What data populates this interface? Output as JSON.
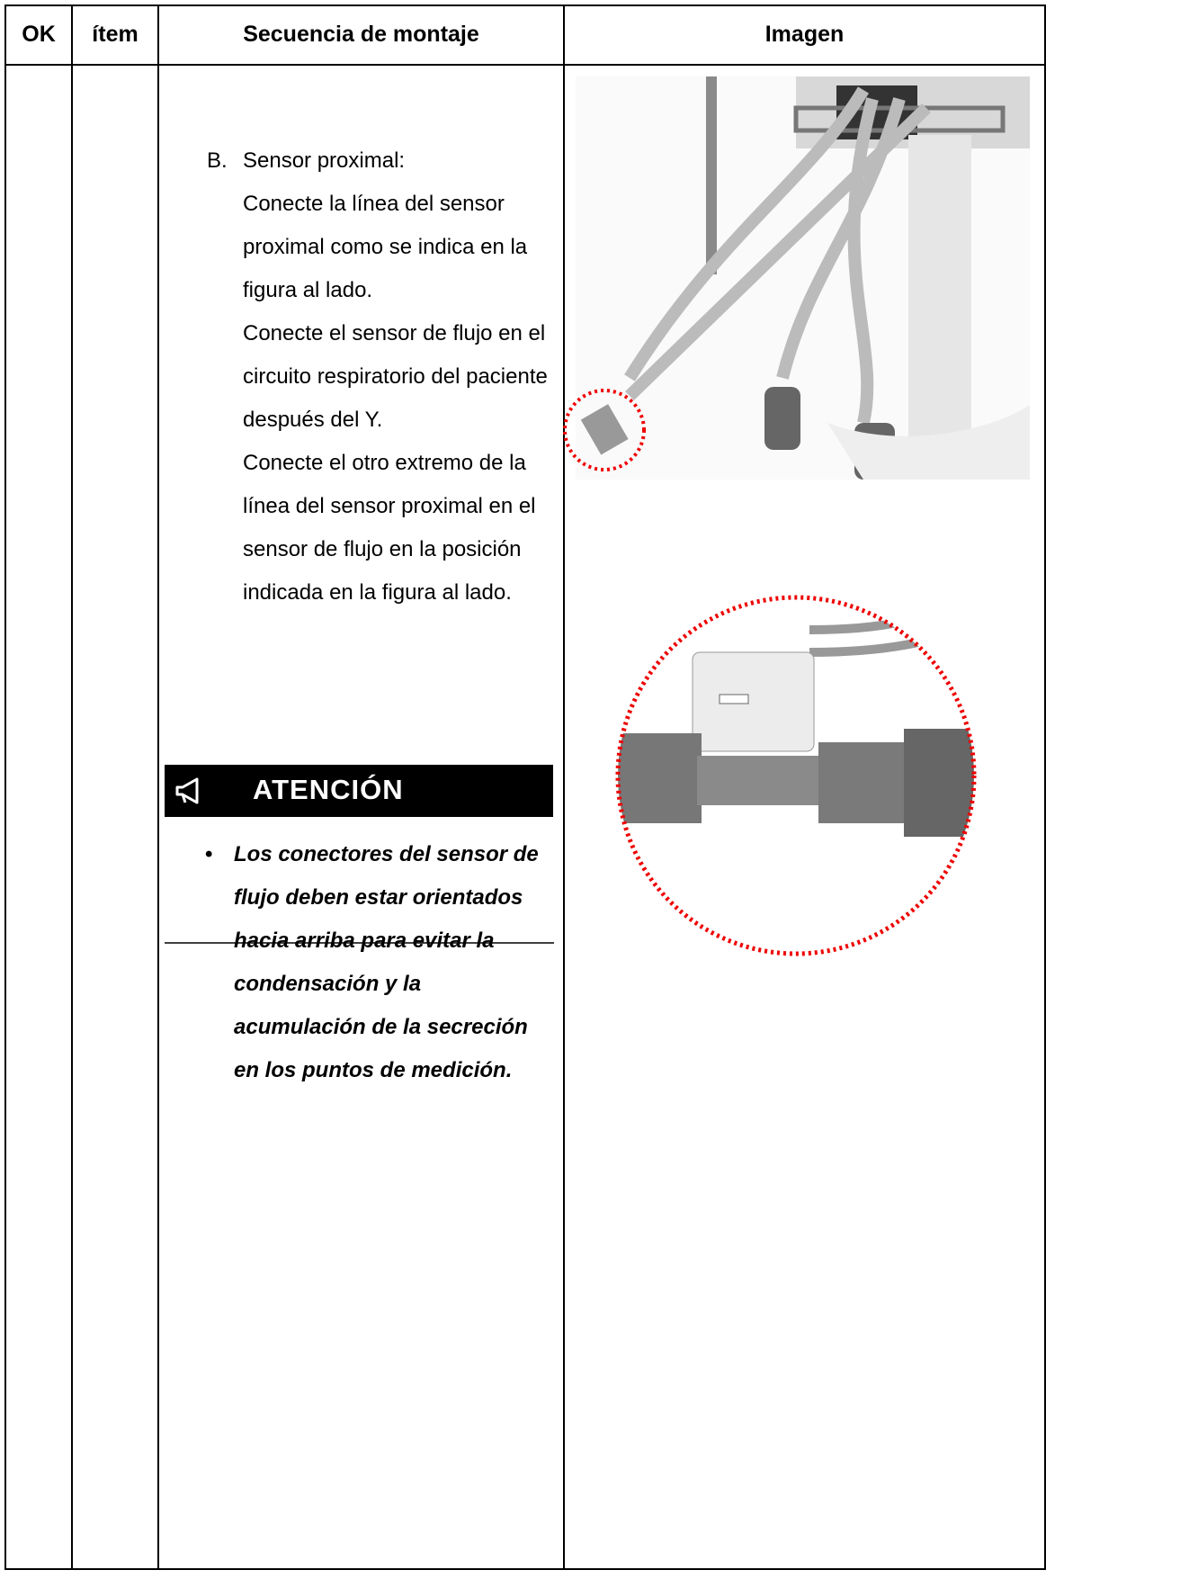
{
  "table": {
    "headers": [
      "OK",
      "ítem",
      "Secuencia de montaje",
      "Imagen"
    ],
    "rows": [
      {
        "step": {
          "marker": "B.",
          "title": "Sensor proximal:",
          "paragraphs": [
            "Conecte la línea del sensor proximal como se indica en la figura al lado.",
            "Conecte el sensor de flujo en el circuito respiratorio del paciente después del Y.",
            "Conecte el otro extremo de la línea del sensor proximal en el sensor de flujo en la posición indicada en la figura al lado."
          ]
        },
        "notice": {
          "heading": "ATENCIÓN",
          "bullets": [
            "Los conectores del sensor de flujo deben estar orientados hacia arriba para evitar la condensación y la acumulación de la secreción en los puntos de medición."
          ]
        }
      }
    ]
  }
}
